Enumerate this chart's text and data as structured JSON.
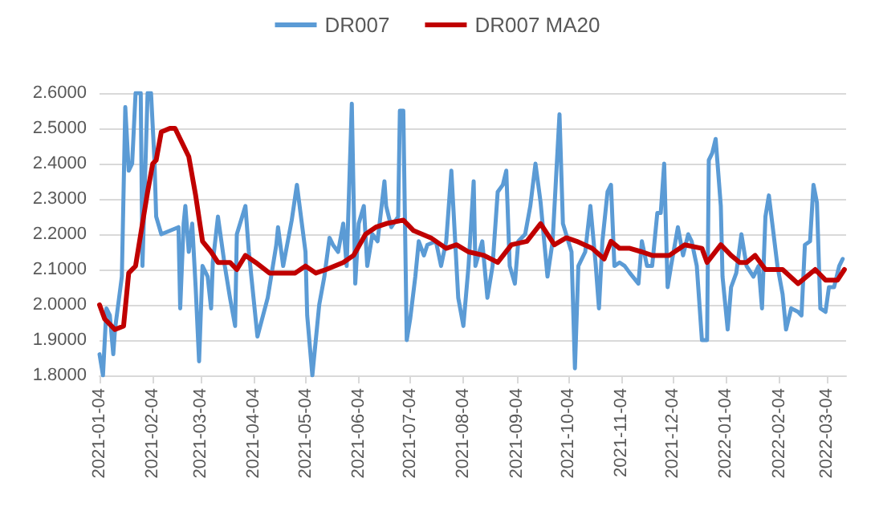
{
  "chart_data": {
    "type": "line",
    "series": [
      {
        "name": "DR007",
        "color": "#5b9bd5",
        "x": [
          "2021-01-04",
          "2021-01-06",
          "2021-01-08",
          "2021-01-10",
          "2021-01-12",
          "2021-01-13",
          "2021-01-17",
          "2021-01-19",
          "2021-01-21",
          "2021-01-23",
          "2021-01-25",
          "2021-01-28",
          "2021-01-29",
          "2021-02-01",
          "2021-02-03",
          "2021-02-05",
          "2021-02-06",
          "2021-02-09",
          "2021-02-19",
          "2021-02-20",
          "2021-02-22",
          "2021-02-23",
          "2021-02-25",
          "2021-02-27",
          "2021-03-01",
          "2021-03-03",
          "2021-03-05",
          "2021-03-08",
          "2021-03-10",
          "2021-03-11",
          "2021-03-14",
          "2021-03-18",
          "2021-03-21",
          "2021-03-24",
          "2021-03-25",
          "2021-03-30",
          "2021-04-01",
          "2021-04-06",
          "2021-04-12",
          "2021-04-17",
          "2021-04-18",
          "2021-04-21",
          "2021-04-26",
          "2021-04-29",
          "2021-05-04",
          "2021-05-05",
          "2021-05-08",
          "2021-05-12",
          "2021-05-15",
          "2021-05-18",
          "2021-05-20",
          "2021-05-23",
          "2021-05-26",
          "2021-05-28",
          "2021-05-31",
          "2021-06-02",
          "2021-06-04",
          "2021-06-07",
          "2021-06-09",
          "2021-06-12",
          "2021-06-15",
          "2021-06-19",
          "2021-06-20",
          "2021-06-23",
          "2021-06-27",
          "2021-06-28",
          "2021-06-30",
          "2021-07-02",
          "2021-07-04",
          "2021-07-07",
          "2021-07-09",
          "2021-07-12",
          "2021-07-14",
          "2021-07-19",
          "2021-07-22",
          "2021-07-25",
          "2021-07-28",
          "2021-07-30",
          "2021-08-01",
          "2021-08-04",
          "2021-08-07",
          "2021-08-10",
          "2021-08-11",
          "2021-08-15",
          "2021-08-18",
          "2021-08-21",
          "2021-08-24",
          "2021-08-27",
          "2021-08-29",
          "2021-08-31",
          "2021-09-03",
          "2021-09-05",
          "2021-09-09",
          "2021-09-12",
          "2021-09-15",
          "2021-09-18",
          "2021-09-22",
          "2021-09-25",
          "2021-09-29",
          "2021-10-01",
          "2021-10-06",
          "2021-10-08",
          "2021-10-10",
          "2021-10-14",
          "2021-10-17",
          "2021-10-20",
          "2021-10-22",
          "2021-10-24",
          "2021-10-27",
          "2021-10-29",
          "2021-10-31",
          "2021-11-03",
          "2021-11-06",
          "2021-11-09",
          "2021-11-14",
          "2021-11-16",
          "2021-11-19",
          "2021-11-22",
          "2021-11-25",
          "2021-11-27",
          "2021-11-29",
          "2021-12-01",
          "2021-12-03",
          "2021-12-07",
          "2021-12-10",
          "2021-12-13",
          "2021-12-15",
          "2021-12-18",
          "2021-12-21",
          "2021-12-24",
          "2021-12-25",
          "2021-12-27",
          "2021-12-29",
          "2022-01-01",
          "2022-01-02",
          "2022-01-05",
          "2022-01-07",
          "2022-01-10",
          "2022-01-13",
          "2022-01-16",
          "2022-01-20",
          "2022-01-23",
          "2022-01-25",
          "2022-01-27",
          "2022-01-29",
          "2022-01-31",
          "2022-02-03",
          "2022-02-06",
          "2022-02-08",
          "2022-02-11",
          "2022-02-15",
          "2022-02-17",
          "2022-02-19",
          "2022-02-22",
          "2022-02-24",
          "2022-02-26",
          "2022-02-28",
          "2022-03-03",
          "2022-03-05",
          "2022-03-08",
          "2022-03-11",
          "2022-03-13"
        ],
        "values": [
          1.86,
          1.8,
          1.99,
          1.97,
          1.86,
          1.93,
          2.08,
          2.56,
          2.38,
          2.4,
          2.6,
          2.6,
          2.11,
          2.6,
          2.6,
          2.41,
          2.25,
          2.2,
          2.22,
          1.99,
          2.23,
          2.28,
          2.15,
          2.23,
          2.05,
          1.84,
          2.11,
          2.08,
          1.99,
          2.12,
          2.25,
          2.11,
          2.02,
          1.94,
          2.2,
          2.28,
          2.15,
          1.91,
          2.02,
          2.17,
          2.22,
          2.11,
          2.24,
          2.34,
          2.15,
          1.97,
          1.8,
          2.0,
          2.08,
          2.19,
          2.17,
          2.15,
          2.23,
          2.11,
          2.57,
          2.06,
          2.23,
          2.28,
          2.11,
          2.2,
          2.18,
          2.35,
          2.28,
          2.22,
          2.25,
          2.55,
          2.55,
          1.9,
          1.96,
          2.08,
          2.18,
          2.14,
          2.17,
          2.18,
          2.11,
          2.18,
          2.38,
          2.2,
          2.02,
          1.94,
          2.11,
          2.35,
          2.11,
          2.18,
          2.02,
          2.11,
          2.32,
          2.34,
          2.38,
          2.11,
          2.06,
          2.18,
          2.2,
          2.28,
          2.4,
          2.29,
          2.08,
          2.18,
          2.54,
          2.23,
          2.15,
          1.82,
          2.11,
          2.15,
          2.28,
          2.12,
          1.99,
          2.18,
          2.32,
          2.34,
          2.11,
          2.12,
          2.11,
          2.09,
          2.06,
          2.18,
          2.11,
          2.11,
          2.26,
          2.26,
          2.4,
          2.05,
          2.11,
          2.22,
          2.14,
          2.2,
          2.18,
          2.11,
          1.9,
          1.9,
          2.41,
          2.43,
          2.47,
          2.28,
          2.08,
          1.93,
          2.05,
          2.09,
          2.2,
          2.11,
          2.08,
          2.11,
          1.99,
          2.25,
          2.31,
          2.23,
          2.11,
          2.03,
          1.93,
          1.99,
          1.98,
          1.97,
          2.17,
          2.18,
          2.34,
          2.29,
          1.99,
          1.98,
          2.05,
          2.05,
          2.11,
          2.13
        ]
      },
      {
        "name": "DR007 MA20",
        "color": "#c00000",
        "x": [
          "2021-01-04",
          "2021-01-07",
          "2021-01-13",
          "2021-01-18",
          "2021-01-21",
          "2021-01-25",
          "2021-01-29",
          "2021-02-01",
          "2021-02-04",
          "2021-02-06",
          "2021-02-09",
          "2021-02-14",
          "2021-02-17",
          "2021-02-20",
          "2021-02-25",
          "2021-03-01",
          "2021-03-05",
          "2021-03-10",
          "2021-03-14",
          "2021-03-21",
          "2021-03-25",
          "2021-03-30",
          "2021-04-05",
          "2021-04-13",
          "2021-04-21",
          "2021-04-28",
          "2021-05-04",
          "2021-05-10",
          "2021-05-16",
          "2021-05-26",
          "2021-06-01",
          "2021-06-08",
          "2021-06-14",
          "2021-06-20",
          "2021-06-30",
          "2021-07-06",
          "2021-07-16",
          "2021-07-25",
          "2021-07-31",
          "2021-08-07",
          "2021-08-16",
          "2021-08-24",
          "2021-09-01",
          "2021-09-10",
          "2021-09-18",
          "2021-09-26",
          "2021-10-03",
          "2021-10-09",
          "2021-10-18",
          "2021-10-25",
          "2021-10-29",
          "2021-11-03",
          "2021-11-09",
          "2021-11-16",
          "2021-11-22",
          "2021-12-02",
          "2021-12-11",
          "2021-12-21",
          "2021-12-24",
          "2022-01-01",
          "2022-01-07",
          "2022-01-12",
          "2022-01-16",
          "2022-01-21",
          "2022-01-27",
          "2022-02-06",
          "2022-02-15",
          "2022-02-25",
          "2022-03-03",
          "2022-03-10",
          "2022-03-14"
        ],
        "values": [
          2.0,
          1.96,
          1.93,
          1.94,
          2.09,
          2.11,
          2.23,
          2.32,
          2.4,
          2.41,
          2.49,
          2.5,
          2.5,
          2.47,
          2.42,
          2.31,
          2.18,
          2.15,
          2.12,
          2.12,
          2.1,
          2.14,
          2.12,
          2.09,
          2.09,
          2.09,
          2.11,
          2.09,
          2.1,
          2.12,
          2.14,
          2.2,
          2.22,
          2.23,
          2.24,
          2.21,
          2.19,
          2.16,
          2.17,
          2.15,
          2.14,
          2.12,
          2.17,
          2.18,
          2.23,
          2.17,
          2.19,
          2.18,
          2.16,
          2.13,
          2.18,
          2.16,
          2.16,
          2.15,
          2.14,
          2.14,
          2.17,
          2.16,
          2.12,
          2.17,
          2.14,
          2.12,
          2.12,
          2.14,
          2.1,
          2.1,
          2.06,
          2.1,
          2.07,
          2.07,
          2.1
        ]
      }
    ],
    "xlim": [
      "2021-01-04",
      "2022-03-15"
    ],
    "xticks": [
      "2021-01-04",
      "2021-02-04",
      "2021-03-04",
      "2021-04-04",
      "2021-05-04",
      "2021-06-04",
      "2021-07-04",
      "2021-08-04",
      "2021-09-04",
      "2021-10-04",
      "2021-11-04",
      "2021-12-04",
      "2022-01-04",
      "2022-02-04",
      "2022-03-04"
    ],
    "ylim": [
      1.8,
      2.6
    ],
    "yticks": [
      {
        "value": 1.8,
        "label": "1.8000"
      },
      {
        "value": 1.9,
        "label": "1.9000"
      },
      {
        "value": 2.0,
        "label": "2.0000"
      },
      {
        "value": 2.1,
        "label": "2.1000"
      },
      {
        "value": 2.2,
        "label": "2.2000"
      },
      {
        "value": 2.3,
        "label": "2.3000"
      },
      {
        "value": 2.4,
        "label": "2.4000"
      },
      {
        "value": 2.5,
        "label": "2.5000"
      },
      {
        "value": 2.6,
        "label": "2.6000"
      }
    ],
    "grid": "y",
    "legend": "top",
    "marker": "none",
    "line_style": "solid"
  }
}
